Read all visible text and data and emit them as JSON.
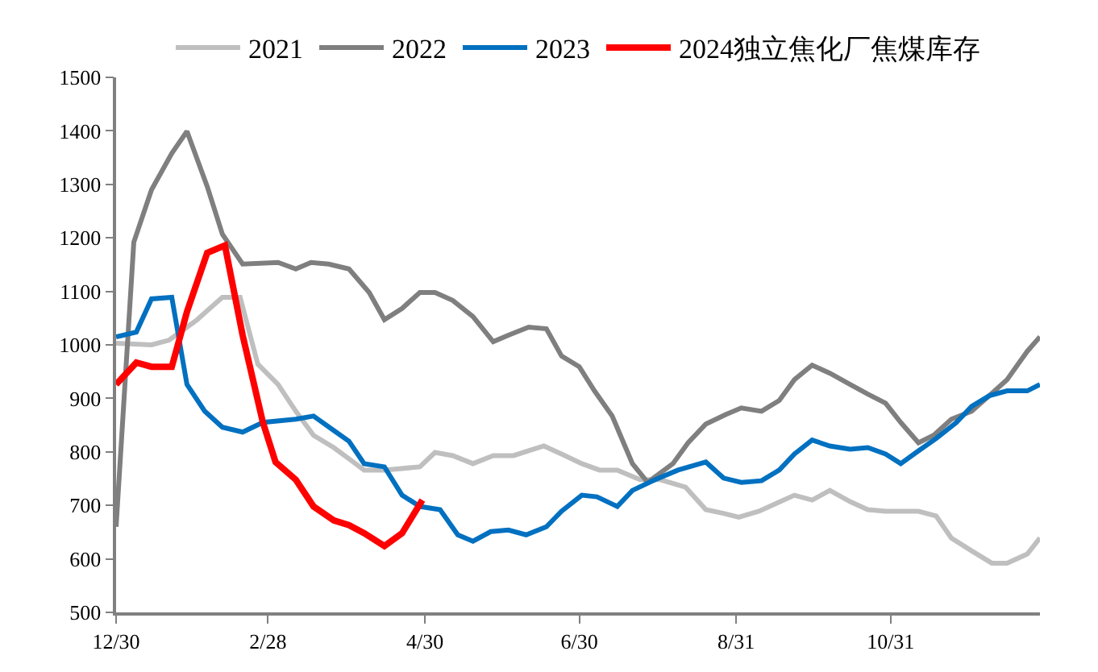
{
  "chart_data": {
    "type": "line",
    "xlim": [
      "2023-12-30",
      "2024-12-29"
    ],
    "xticks": [
      {
        "value": "2023-12-30",
        "label": "12/30"
      },
      {
        "value": "2024-02-28",
        "label": "2/28"
      },
      {
        "value": "2024-04-30",
        "label": "4/30"
      },
      {
        "value": "2024-06-30",
        "label": "6/30"
      },
      {
        "value": "2024-08-31",
        "label": "8/31"
      },
      {
        "value": "2024-10-31",
        "label": "10/31"
      }
    ],
    "ylim": [
      500,
      1500
    ],
    "yticks": [
      500,
      600,
      700,
      800,
      900,
      1000,
      1100,
      1200,
      1300,
      1400,
      1500
    ],
    "grid": false,
    "legend": "top",
    "marker": "none",
    "line_style": "solid",
    "series": [
      {
        "name": "2021",
        "color": "#bfbfbf",
        "x": [
          "2023-12-30",
          "2024-01-13",
          "2024-01-20",
          "2024-01-31",
          "2024-02-10",
          "2024-02-17",
          "2024-02-24",
          "2024-03-03",
          "2024-03-10",
          "2024-03-17",
          "2024-03-25",
          "2024-03-31",
          "2024-04-06",
          "2024-04-14",
          "2024-04-28",
          "2024-05-04",
          "2024-05-11",
          "2024-05-19",
          "2024-05-27",
          "2024-06-04",
          "2024-06-10",
          "2024-06-16",
          "2024-06-23",
          "2024-07-01",
          "2024-07-08",
          "2024-07-15",
          "2024-07-24",
          "2024-08-01",
          "2024-08-11",
          "2024-08-19",
          "2024-08-26",
          "2024-09-01",
          "2024-09-09",
          "2024-09-16",
          "2024-09-23",
          "2024-09-30",
          "2024-10-07",
          "2024-10-15",
          "2024-10-22",
          "2024-10-29",
          "2024-11-11",
          "2024-11-18",
          "2024-11-24",
          "2024-12-02",
          "2024-12-10",
          "2024-12-16",
          "2024-12-24",
          "2024-12-29"
        ],
        "values": [
          1003,
          1000,
          1009,
          1047,
          1089,
          1089,
          964,
          926,
          876,
          831,
          808,
          787,
          766,
          766,
          772,
          799,
          793,
          778,
          793,
          793,
          802,
          811,
          796,
          778,
          766,
          766,
          748,
          748,
          734,
          692,
          685,
          678,
          689,
          704,
          719,
          710,
          728,
          707,
          692,
          689,
          689,
          680,
          639,
          615,
          592,
          592,
          609,
          639
        ]
      },
      {
        "name": "2022",
        "color": "#7f7f7f",
        "x": [
          "2023-12-30",
          "2024-01-06",
          "2024-01-13",
          "2024-01-21",
          "2024-01-27",
          "2024-02-04",
          "2024-02-10",
          "2024-02-18",
          "2024-03-03",
          "2024-03-10",
          "2024-03-16",
          "2024-03-23",
          "2024-03-31",
          "2024-04-08",
          "2024-04-14",
          "2024-04-21",
          "2024-04-28",
          "2024-05-04",
          "2024-05-11",
          "2024-05-19",
          "2024-05-27",
          "2024-06-02",
          "2024-06-10",
          "2024-06-17",
          "2024-06-23",
          "2024-06-30",
          "2024-07-06",
          "2024-07-13",
          "2024-07-21",
          "2024-07-27",
          "2024-08-06",
          "2024-08-12",
          "2024-08-19",
          "2024-08-27",
          "2024-09-02",
          "2024-09-10",
          "2024-09-17",
          "2024-09-23",
          "2024-09-30",
          "2024-10-07",
          "2024-10-15",
          "2024-10-22",
          "2024-10-29",
          "2024-11-04",
          "2024-11-11",
          "2024-11-17",
          "2024-11-24",
          "2024-12-02",
          "2024-12-09",
          "2024-12-16",
          "2024-12-24",
          "2024-12-29"
        ],
        "values": [
          660,
          1192,
          1290,
          1358,
          1399,
          1296,
          1207,
          1151,
          1154,
          1142,
          1154,
          1151,
          1142,
          1098,
          1047,
          1068,
          1098,
          1098,
          1083,
          1053,
          1006,
          1018,
          1033,
          1030,
          979,
          959,
          914,
          867,
          778,
          743,
          778,
          817,
          852,
          870,
          882,
          876,
          896,
          935,
          962,
          947,
          926,
          908,
          891,
          855,
          817,
          831,
          861,
          876,
          905,
          935,
          988,
          1015
        ]
      },
      {
        "name": "2023",
        "color": "#0070c0",
        "x": [
          "2023-12-30",
          "2024-01-07",
          "2024-01-13",
          "2024-01-21",
          "2024-01-27",
          "2024-02-03",
          "2024-02-10",
          "2024-02-18",
          "2024-02-26",
          "2024-03-10",
          "2024-03-17",
          "2024-03-25",
          "2024-03-31",
          "2024-04-06",
          "2024-04-14",
          "2024-04-21",
          "2024-04-28",
          "2024-05-06",
          "2024-05-13",
          "2024-05-19",
          "2024-05-26",
          "2024-06-02",
          "2024-06-09",
          "2024-06-17",
          "2024-06-23",
          "2024-07-01",
          "2024-07-07",
          "2024-07-15",
          "2024-07-21",
          "2024-07-30",
          "2024-08-08",
          "2024-08-19",
          "2024-08-26",
          "2024-09-02",
          "2024-09-10",
          "2024-09-17",
          "2024-09-23",
          "2024-09-30",
          "2024-10-07",
          "2024-10-15",
          "2024-10-22",
          "2024-10-29",
          "2024-11-04",
          "2024-11-11",
          "2024-11-18",
          "2024-11-26",
          "2024-12-02",
          "2024-12-09",
          "2024-12-16",
          "2024-12-24",
          "2024-12-29"
        ],
        "values": [
          1015,
          1024,
          1086,
          1089,
          926,
          876,
          846,
          837,
          855,
          861,
          867,
          840,
          820,
          778,
          772,
          719,
          698,
          692,
          645,
          633,
          651,
          654,
          645,
          660,
          689,
          719,
          716,
          698,
          728,
          748,
          766,
          781,
          751,
          743,
          746,
          766,
          796,
          822,
          811,
          805,
          808,
          796,
          778,
          802,
          825,
          855,
          885,
          905,
          914,
          914,
          926
        ]
      },
      {
        "name": "2024独立焦化厂焦煤库存",
        "color": "#ff0000",
        "x": [
          "2023-12-30",
          "2024-01-07",
          "2024-01-13",
          "2024-01-21",
          "2024-01-27",
          "2024-02-04",
          "2024-02-11",
          "2024-02-18",
          "2024-02-26",
          "2024-03-02",
          "2024-03-10",
          "2024-03-17",
          "2024-03-25",
          "2024-03-31",
          "2024-04-06",
          "2024-04-14",
          "2024-04-21",
          "2024-04-29"
        ],
        "values": [
          926,
          967,
          959,
          959,
          1062,
          1172,
          1186,
          1018,
          855,
          781,
          748,
          698,
          672,
          663,
          648,
          624,
          648,
          710
        ]
      }
    ]
  }
}
